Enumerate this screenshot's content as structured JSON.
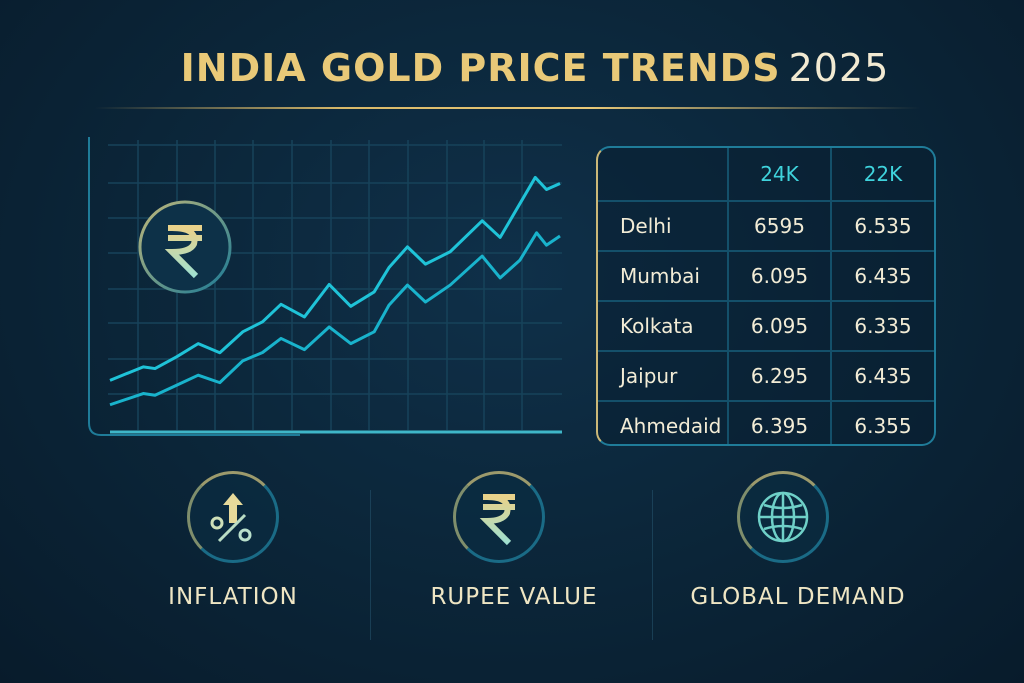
{
  "title": {
    "main": "INDIA GOLD PRICE TRENDS",
    "year": "2025"
  },
  "chart_data": {
    "type": "line",
    "title": "",
    "xlabel": "",
    "ylabel": "",
    "xlim": [
      0,
      100
    ],
    "ylim": [
      0,
      100
    ],
    "grid": true,
    "series": [
      {
        "name": "upper",
        "color": "#1fc3d8",
        "x": [
          0,
          7.4,
          10,
          14.8,
          19.6,
          24.4,
          29.5,
          33.9,
          38,
          43.2,
          48.7,
          53.5,
          58.7,
          62,
          66.1,
          70.1,
          75.6,
          82.7,
          86.7,
          94.5,
          97,
          100
        ],
        "y": [
          18,
          22.7,
          22.1,
          26.2,
          30.8,
          27.6,
          34.9,
          38.4,
          44.5,
          40.1,
          51.4,
          43.8,
          48.8,
          57.3,
          64.5,
          58.5,
          62.8,
          73.6,
          67.8,
          88.7,
          84.5,
          86.6
        ]
      },
      {
        "name": "lower",
        "color": "#19b3cc",
        "x": [
          0,
          7.4,
          10,
          14.8,
          19.6,
          24.4,
          29.5,
          33.9,
          38,
          43.2,
          48.7,
          53.5,
          58.7,
          62,
          66.1,
          70.1,
          75.6,
          82.7,
          86.7,
          91.1,
          94.8,
          97,
          100
        ],
        "y": [
          9.5,
          13.4,
          12.8,
          16.3,
          19.8,
          17.2,
          24.8,
          27.7,
          32.6,
          28.7,
          36.6,
          30.8,
          34.9,
          44.2,
          51.2,
          45.3,
          51.2,
          61.3,
          53.7,
          59.9,
          69.4,
          65.1,
          68.3
        ]
      }
    ]
  },
  "table": {
    "headers": [
      "",
      "24K",
      "22K"
    ],
    "rows": [
      [
        "Delhi",
        "6595",
        "6.535"
      ],
      [
        "Mumbai",
        "6.095",
        "6.435"
      ],
      [
        "Kolkata",
        "6.095",
        "6.335"
      ],
      [
        "Jaipur",
        "6.295",
        "6.435"
      ],
      [
        "Ahmedaid",
        "6.395",
        "6.355"
      ]
    ]
  },
  "factors": [
    {
      "label": "INFLATION",
      "icon": "inflation-icon"
    },
    {
      "label": "RUPEE VALUE",
      "icon": "rupee-icon"
    },
    {
      "label": "GLOBAL DEMAND",
      "icon": "globe-icon"
    }
  ],
  "colors": {
    "gold": "#e9c978",
    "cyan": "#1fc3d8",
    "bg": "#0b2538"
  }
}
